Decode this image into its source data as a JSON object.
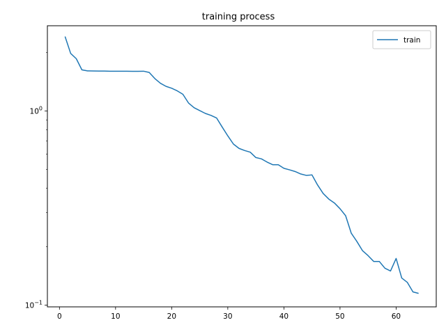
{
  "chart_data": {
    "type": "line",
    "title": "training process",
    "xlabel": "",
    "ylabel": "",
    "xlim": [
      -2.15,
      67.15
    ],
    "ylim": [
      0.098,
      2.75
    ],
    "yscale": "log",
    "grid": false,
    "legend_position": "top-right",
    "x_ticks": [
      0,
      10,
      20,
      30,
      40,
      50,
      60
    ],
    "y_ticks": [
      {
        "value": 1,
        "label": "10^0"
      },
      {
        "value": 0.1,
        "label": "10^-1"
      }
    ],
    "series": [
      {
        "name": "train",
        "color": "#1f77b4",
        "x": [
          1,
          2,
          3,
          4,
          5,
          6,
          7,
          8,
          9,
          10,
          11,
          12,
          13,
          14,
          15,
          16,
          17,
          18,
          19,
          20,
          21,
          22,
          23,
          24,
          25,
          26,
          27,
          28,
          29,
          30,
          31,
          32,
          33,
          34,
          35,
          36,
          37,
          38,
          39,
          40,
          41,
          42,
          43,
          44,
          45,
          46,
          47,
          48,
          49,
          50,
          51,
          52,
          53,
          54,
          55,
          56,
          57,
          58,
          59,
          60,
          61,
          62,
          63,
          64
        ],
        "values": [
          2.42,
          1.98,
          1.86,
          1.63,
          1.61,
          1.608,
          1.607,
          1.606,
          1.604,
          1.604,
          1.604,
          1.603,
          1.602,
          1.602,
          1.604,
          1.58,
          1.47,
          1.39,
          1.34,
          1.31,
          1.27,
          1.22,
          1.1,
          1.04,
          1.005,
          0.972,
          0.95,
          0.921,
          0.827,
          0.745,
          0.676,
          0.642,
          0.626,
          0.614,
          0.576,
          0.567,
          0.546,
          0.529,
          0.529,
          0.507,
          0.498,
          0.488,
          0.474,
          0.466,
          0.469,
          0.416,
          0.376,
          0.352,
          0.336,
          0.314,
          0.289,
          0.235,
          0.213,
          0.191,
          0.18,
          0.168,
          0.168,
          0.155,
          0.15,
          0.174,
          0.138,
          0.131,
          0.117,
          0.115
        ]
      }
    ]
  }
}
